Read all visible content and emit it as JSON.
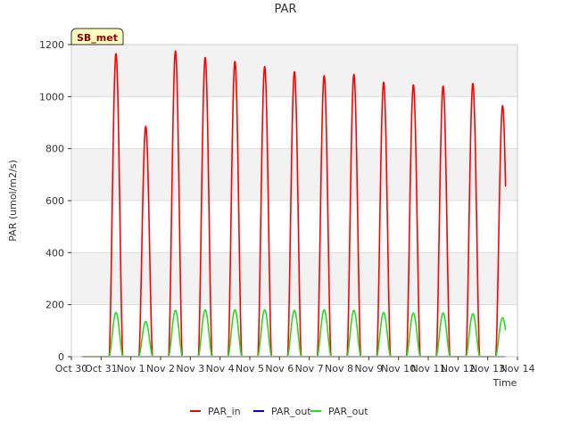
{
  "chart_data": {
    "type": "line",
    "title": "PAR",
    "xlabel": "Time",
    "ylabel": "PAR (umol/m2/s)",
    "site_label": "SB_met",
    "x_range": [
      "Oct 30",
      "Nov 14"
    ],
    "ylim": [
      0,
      1200
    ],
    "yticks": [
      0,
      200,
      400,
      600,
      800,
      1000,
      1200
    ],
    "xtick_labels": [
      "Oct 30",
      "Oct 31",
      "Nov 1",
      "Nov 2",
      "Nov 3",
      "Nov 4",
      "Nov 5",
      "Nov 6",
      "Nov 7",
      "Nov 8",
      "Nov 9",
      "Nov 10",
      "Nov 11",
      "Nov 12",
      "Nov 13",
      "Nov 14"
    ],
    "background_bands": true,
    "legend_position": "bottom-center",
    "days": [
      "Oct 31",
      "Nov 1",
      "Nov 2",
      "Nov 3",
      "Nov 4",
      "Nov 5",
      "Nov 6",
      "Nov 7",
      "Nov 8",
      "Nov 9",
      "Nov 10",
      "Nov 11",
      "Nov 12",
      "Nov 13"
    ],
    "series": [
      {
        "name": "PAR_in",
        "color": "#ff0000",
        "daily_peak": [
          1165,
          885,
          1175,
          1150,
          1135,
          1115,
          1095,
          1080,
          1085,
          1055,
          1045,
          1040,
          1050,
          965
        ]
      },
      {
        "name": "PAR_out",
        "color": "#0000cc",
        "daily_peak": [
          0,
          0,
          0,
          0,
          0,
          0,
          0,
          0,
          0,
          0,
          0,
          0,
          0,
          0
        ]
      },
      {
        "name": "PAR_out",
        "color": "#22dd22",
        "daily_peak": [
          170,
          135,
          178,
          180,
          180,
          180,
          178,
          180,
          178,
          170,
          168,
          168,
          165,
          150
        ]
      }
    ]
  }
}
